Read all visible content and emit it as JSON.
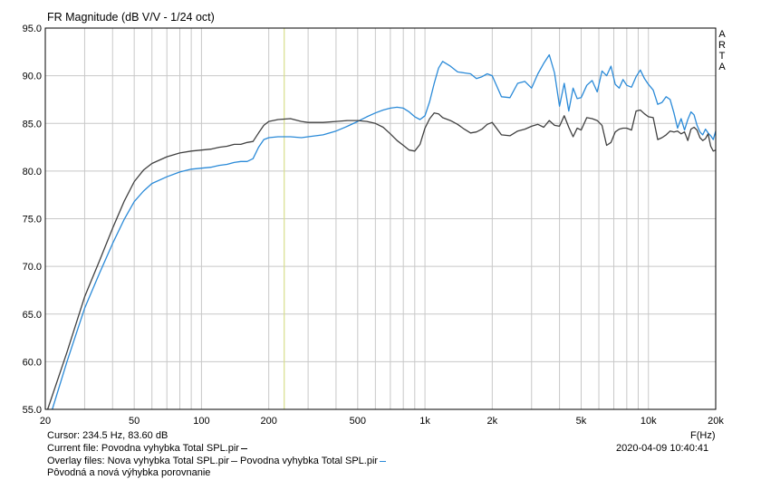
{
  "header": {
    "title": "FR Magnitude (dB V/V - 1/24 oct)",
    "arta_letters": [
      "A",
      "R",
      "T",
      "A"
    ],
    "xunit": "F(Hz)"
  },
  "footer": {
    "cursor": "Cursor: 234.5 Hz, 83.60 dB",
    "current_file": "Current file: Povodna vyhybka Total SPL.pir",
    "overlay_label": "Overlay files:",
    "overlay_1": "Nova vyhybka Total SPL.pir",
    "overlay_2": "Povodna vyhybka Total SPL.pir",
    "comment": "Pôvodná a nová výhybka porovnanie",
    "timestamp": "2020-04-09  10:40:41"
  },
  "colors": {
    "background": "#ffffff",
    "grid": "#c8c8c8",
    "cursor": "#d8de8c",
    "current": "#000000",
    "overlay_new": "#2a8ad8",
    "overlay_old": "#404040"
  },
  "chart_data": {
    "type": "line",
    "xscale": "log",
    "xlim": [
      20,
      20000
    ],
    "ylim": [
      55,
      95
    ],
    "x_ticks": [
      20,
      50,
      100,
      200,
      500,
      1000,
      2000,
      5000,
      10000,
      20000
    ],
    "x_tick_labels": [
      "20",
      "50",
      "100",
      "200",
      "500",
      "1k",
      "2k",
      "5k",
      "10k",
      "20k"
    ],
    "y_ticks": [
      55,
      60,
      65,
      70,
      75,
      80,
      85,
      90,
      95
    ],
    "y_tick_labels": [
      "55.0",
      "60.0",
      "65.0",
      "70.0",
      "75.0",
      "80.0",
      "85.0",
      "90.0",
      "95.0"
    ],
    "grid": true,
    "cursor_x": 234.5,
    "series": [
      {
        "name": "Nova vyhybka Total SPL.pir",
        "color": "#2a8ad8",
        "x": [
          21.5,
          25,
          30,
          35,
          40,
          45,
          50,
          55,
          60,
          70,
          80,
          90,
          100,
          110,
          120,
          130,
          140,
          150,
          160,
          170,
          180,
          190,
          200,
          220,
          250,
          280,
          300,
          350,
          400,
          450,
          500,
          550,
          600,
          650,
          700,
          750,
          800,
          850,
          900,
          950,
          1000,
          1050,
          1100,
          1150,
          1200,
          1300,
          1400,
          1500,
          1600,
          1700,
          1800,
          1900,
          2000,
          2200,
          2400,
          2600,
          2800,
          3000,
          3200,
          3400,
          3600,
          3800,
          4000,
          4200,
          4400,
          4600,
          4800,
          5000,
          5300,
          5600,
          5900,
          6200,
          6500,
          6800,
          7100,
          7400,
          7700,
          8000,
          8400,
          8800,
          9200,
          9600,
          10000,
          10500,
          11000,
          11500,
          12000,
          12500,
          13000,
          13500,
          14000,
          14500,
          15000,
          15500,
          16000,
          16500,
          17000,
          17500,
          18000,
          18500,
          19000,
          19500,
          20000
        ],
        "values": [
          55.0,
          60.0,
          65.6,
          69.3,
          72.4,
          74.9,
          76.8,
          77.9,
          78.7,
          79.4,
          79.9,
          80.2,
          80.3,
          80.4,
          80.6,
          80.7,
          80.9,
          81.0,
          81.0,
          81.3,
          82.5,
          83.3,
          83.5,
          83.6,
          83.6,
          83.5,
          83.6,
          83.8,
          84.2,
          84.7,
          85.2,
          85.7,
          86.1,
          86.4,
          86.6,
          86.7,
          86.6,
          86.2,
          85.7,
          85.4,
          85.8,
          87.3,
          89.2,
          90.8,
          91.5,
          91.0,
          90.4,
          90.3,
          90.2,
          89.7,
          89.9,
          90.2,
          90.0,
          87.8,
          87.7,
          89.2,
          89.4,
          88.7,
          90.2,
          91.3,
          92.2,
          90.3,
          86.8,
          89.2,
          86.3,
          88.7,
          87.6,
          87.7,
          89.0,
          89.5,
          88.3,
          90.5,
          90.0,
          91.0,
          89.1,
          88.7,
          89.6,
          89.0,
          88.8,
          89.9,
          90.6,
          89.7,
          89.1,
          88.5,
          87.0,
          87.2,
          87.8,
          87.5,
          86.1,
          84.5,
          85.5,
          84.3,
          85.4,
          86.2,
          85.9,
          84.8,
          84.1,
          83.8,
          84.4,
          84.0,
          83.7,
          83.3,
          84.2
        ]
      },
      {
        "name": "Povodna vyhybka Total SPL.pir",
        "color": "#404040",
        "x": [
          20.5,
          25,
          30,
          35,
          40,
          45,
          50,
          55,
          60,
          70,
          80,
          90,
          100,
          110,
          120,
          130,
          140,
          150,
          160,
          170,
          180,
          190,
          200,
          220,
          250,
          280,
          300,
          350,
          400,
          450,
          500,
          550,
          600,
          650,
          700,
          750,
          800,
          850,
          900,
          950,
          1000,
          1050,
          1100,
          1150,
          1200,
          1300,
          1400,
          1500,
          1600,
          1700,
          1800,
          1900,
          2000,
          2200,
          2400,
          2600,
          2800,
          3000,
          3200,
          3400,
          3600,
          3800,
          4000,
          4200,
          4400,
          4600,
          4800,
          5000,
          5300,
          5600,
          5900,
          6200,
          6500,
          6800,
          7100,
          7400,
          7700,
          8000,
          8400,
          8800,
          9200,
          9600,
          10000,
          10500,
          11000,
          11500,
          12000,
          12500,
          13000,
          13500,
          14000,
          14500,
          15000,
          15500,
          16000,
          16500,
          17000,
          17500,
          18000,
          18500,
          19000,
          19500,
          20000
        ],
        "values": [
          55.0,
          61.0,
          66.8,
          70.6,
          74.0,
          76.8,
          78.9,
          80.1,
          80.8,
          81.5,
          81.9,
          82.1,
          82.2,
          82.3,
          82.5,
          82.6,
          82.8,
          82.8,
          83.0,
          83.1,
          84.0,
          84.8,
          85.2,
          85.4,
          85.5,
          85.2,
          85.1,
          85.1,
          85.2,
          85.3,
          85.3,
          85.2,
          85.0,
          84.6,
          83.9,
          83.2,
          82.7,
          82.2,
          82.1,
          82.8,
          84.5,
          85.5,
          86.1,
          86.0,
          85.6,
          85.3,
          84.9,
          84.4,
          84.0,
          84.1,
          84.4,
          84.9,
          85.1,
          83.8,
          83.7,
          84.2,
          84.4,
          84.7,
          84.9,
          84.6,
          85.3,
          84.8,
          84.7,
          85.8,
          84.6,
          83.6,
          84.5,
          84.3,
          85.6,
          85.5,
          85.3,
          84.8,
          82.7,
          83.0,
          84.1,
          84.4,
          84.5,
          84.5,
          84.3,
          86.3,
          86.4,
          86.0,
          85.7,
          85.6,
          83.3,
          83.5,
          83.8,
          84.2,
          84.1,
          84.2,
          83.9,
          84.1,
          83.2,
          84.4,
          84.6,
          84.3,
          83.5,
          83.2,
          83.4,
          83.9,
          82.6,
          82.1,
          82.2
        ]
      }
    ]
  }
}
